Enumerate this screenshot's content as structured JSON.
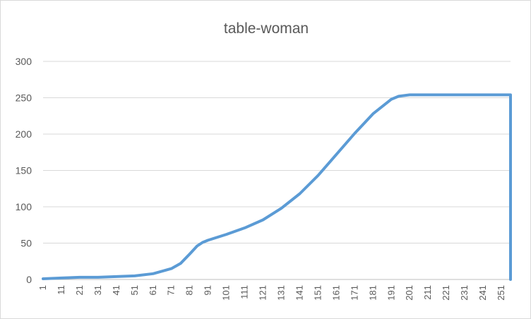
{
  "chart_data": {
    "type": "line",
    "title": "table-woman",
    "xlabel": "",
    "ylabel": "",
    "xlim": [
      1,
      256
    ],
    "ylim": [
      0,
      300
    ],
    "y_ticks": [
      0,
      50,
      100,
      150,
      200,
      250,
      300
    ],
    "x_tick_labels": [
      "1",
      "11",
      "21",
      "31",
      "41",
      "51",
      "61",
      "71",
      "81",
      "91",
      "101",
      "111",
      "121",
      "131",
      "141",
      "151",
      "161",
      "171",
      "181",
      "191",
      "201",
      "211",
      "221",
      "231",
      "241",
      "251"
    ],
    "grid": true,
    "legend": "none",
    "series": [
      {
        "color": "#5b9bd5",
        "points": [
          [
            1,
            1
          ],
          [
            11,
            2
          ],
          [
            21,
            3
          ],
          [
            31,
            3
          ],
          [
            41,
            4
          ],
          [
            51,
            5
          ],
          [
            61,
            8
          ],
          [
            71,
            15
          ],
          [
            76,
            22
          ],
          [
            81,
            35
          ],
          [
            85,
            46
          ],
          [
            88,
            51
          ],
          [
            91,
            54
          ],
          [
            101,
            62
          ],
          [
            111,
            71
          ],
          [
            121,
            82
          ],
          [
            131,
            98
          ],
          [
            141,
            118
          ],
          [
            151,
            143
          ],
          [
            161,
            172
          ],
          [
            171,
            201
          ],
          [
            181,
            228
          ],
          [
            191,
            248
          ],
          [
            195,
            252
          ],
          [
            201,
            254
          ],
          [
            211,
            254
          ],
          [
            221,
            254
          ],
          [
            231,
            254
          ],
          [
            241,
            254
          ],
          [
            251,
            254
          ],
          [
            256,
            254
          ],
          [
            256,
            0
          ]
        ]
      }
    ]
  }
}
